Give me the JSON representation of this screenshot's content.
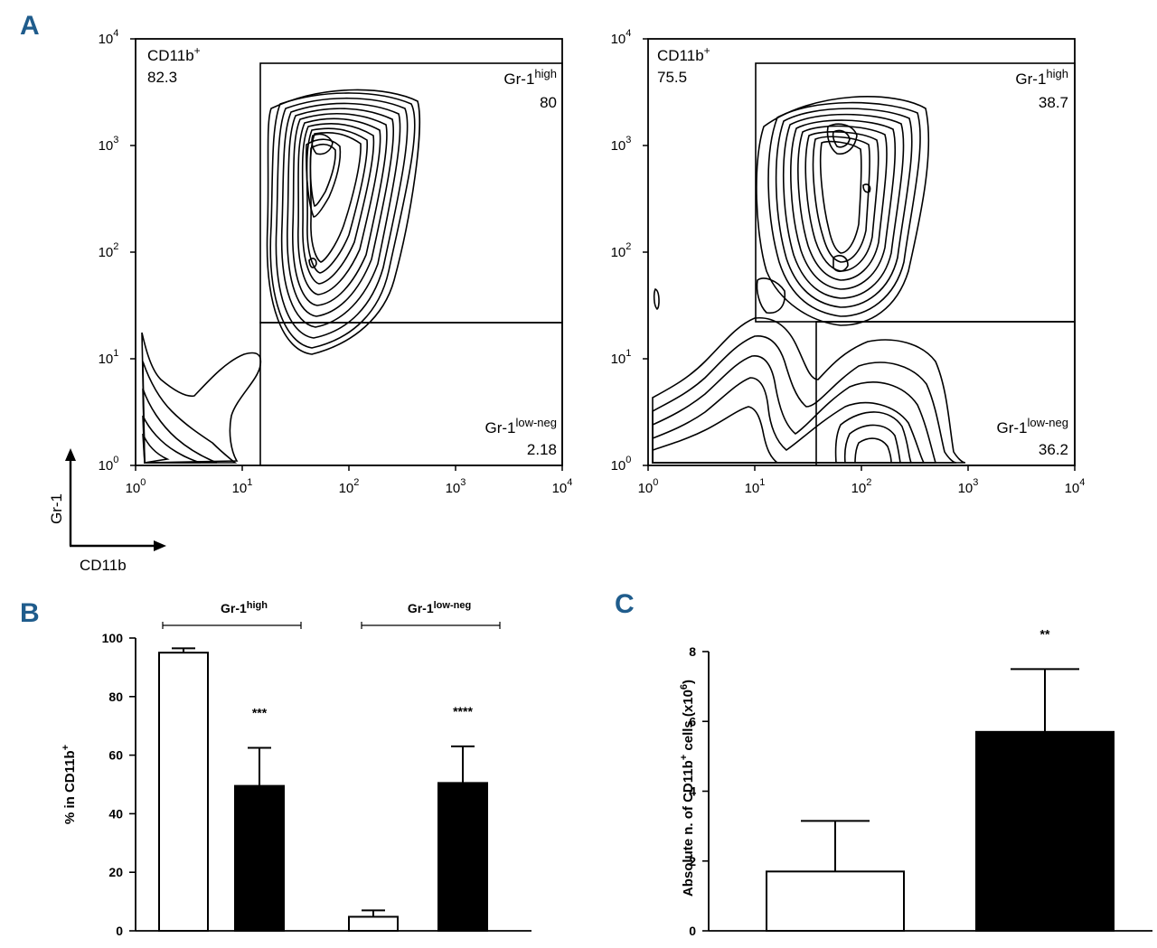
{
  "chart_data": [
    {
      "panel": "A",
      "type": "contour",
      "side": "left",
      "xaxis_ticks": [
        "10",
        "10",
        "10",
        "10",
        "10"
      ],
      "xaxis_exps": [
        "0",
        "1",
        "2",
        "3",
        "4"
      ],
      "yaxis_ticks": [
        "10",
        "10",
        "10",
        "10",
        "10"
      ],
      "yaxis_exps": [
        "0",
        "1",
        "2",
        "3",
        "4"
      ],
      "xlim_log10": [
        0,
        4
      ],
      "ylim_log10": [
        0,
        4
      ],
      "gates": {
        "cd11b": {
          "label": "CD11b",
          "sup": "+",
          "value": "82.3"
        },
        "gr1_high": {
          "label": "Gr-1",
          "sup": "high",
          "value": "80"
        },
        "gr1_low": {
          "label": "Gr-1",
          "sup": "low-neg",
          "value": "2.18"
        }
      },
      "gate_thresholds_log10": {
        "cd11b_x": 1.18,
        "gr1_y": 1.36
      }
    },
    {
      "panel": "A",
      "type": "contour",
      "side": "right",
      "xaxis_ticks": [
        "10",
        "10",
        "10",
        "10",
        "10"
      ],
      "xaxis_exps": [
        "0",
        "1",
        "2",
        "3",
        "4"
      ],
      "yaxis_ticks": [
        "10",
        "10",
        "10",
        "10",
        "10"
      ],
      "yaxis_exps": [
        "0",
        "1",
        "2",
        "3",
        "4"
      ],
      "xlim_log10": [
        0,
        4
      ],
      "ylim_log10": [
        0,
        4
      ],
      "gates": {
        "cd11b": {
          "label": "CD11b",
          "sup": "+",
          "value": "75.5"
        },
        "gr1_high": {
          "label": "Gr-1",
          "sup": "high",
          "value": "38.7"
        },
        "gr1_low": {
          "label": "Gr-1",
          "sup": "low-neg",
          "value": "36.2"
        }
      },
      "gate_thresholds_log10": {
        "cd11b_x": 1.58,
        "gr1_y": 1.36
      }
    },
    {
      "panel": "B",
      "type": "bar",
      "ylabel": "% in CD11b",
      "ylabel_sup": "+",
      "ylim": [
        0,
        100
      ],
      "yticks": [
        0,
        20,
        40,
        60,
        80,
        100
      ],
      "groups": [
        {
          "label": "Gr-1",
          "sup": "high"
        },
        {
          "label": "Gr-1",
          "sup": "low-neg"
        }
      ],
      "bars": [
        {
          "group": 0,
          "fill": "white",
          "value": 95,
          "error": 1.5,
          "sig": ""
        },
        {
          "group": 0,
          "fill": "black",
          "value": 49.5,
          "error": 13,
          "sig": "***"
        },
        {
          "group": 1,
          "fill": "white",
          "value": 4.8,
          "error": 2.2,
          "sig": ""
        },
        {
          "group": 1,
          "fill": "black",
          "value": 50.5,
          "error": 12.5,
          "sig": "****"
        }
      ]
    },
    {
      "panel": "C",
      "type": "bar",
      "ylabel": "Absolute n. of CD11b",
      "ylabel_sup": "+",
      "ylabel_suffix": " cells (x10",
      "ylabel_exp": "6",
      "ylabel_end": ")",
      "ylim": [
        0,
        8
      ],
      "yticks": [
        0,
        2,
        4,
        6,
        8
      ],
      "bars": [
        {
          "fill": "white",
          "value": 1.7,
          "error": 1.45,
          "sig": ""
        },
        {
          "fill": "black",
          "value": 5.7,
          "error": 1.8,
          "sig": "**"
        }
      ]
    }
  ],
  "panel_labels": {
    "a": "A",
    "b": "B",
    "c": "C"
  },
  "facs_axes": {
    "y_arrow_label": "Gr-1",
    "x_arrow_label": "CD11b"
  },
  "colors": {
    "accent": "#1f5c8c",
    "ink": "#000000",
    "background": "#ffffff"
  }
}
